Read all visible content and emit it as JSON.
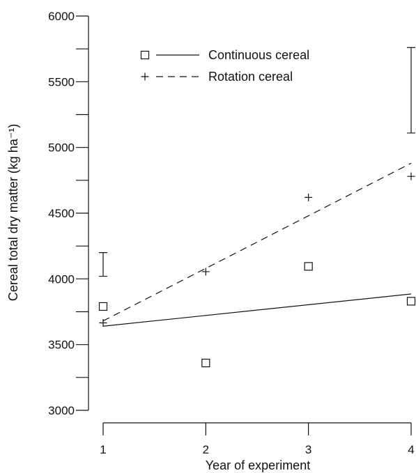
{
  "chart_data": {
    "type": "scatter",
    "title": "",
    "xlabel": "Year of experiment",
    "ylabel": "Cereal total dry matter (kg ha⁻¹)",
    "xlim": [
      1,
      4
    ],
    "ylim": [
      3000,
      6000
    ],
    "x_ticks": [
      1,
      2,
      3,
      4
    ],
    "y_ticks": [
      3000,
      3500,
      4000,
      4500,
      5000,
      5500,
      6000
    ],
    "y_minor_step": 250,
    "grid": false,
    "legend_position": "top-center",
    "series": [
      {
        "name": "Continuous cereal",
        "marker": "square",
        "line_style": "solid",
        "x": [
          1,
          2,
          3,
          4
        ],
        "y": [
          3790,
          3360,
          4095,
          3830
        ],
        "fit": [
          [
            1,
            3640
          ],
          [
            4,
            3885
          ]
        ]
      },
      {
        "name": "Rotation cereal",
        "marker": "plus",
        "line_style": "dashed",
        "x": [
          1,
          2,
          3,
          4
        ],
        "y": [
          3665,
          4055,
          4620,
          4780
        ],
        "fit": [
          [
            1,
            3680
          ],
          [
            4,
            4880
          ]
        ]
      }
    ],
    "error_bars": [
      {
        "x": 1,
        "y_low": 4020,
        "y_high": 4200
      },
      {
        "x": 4,
        "y_low": 5110,
        "y_high": 5760
      }
    ]
  }
}
